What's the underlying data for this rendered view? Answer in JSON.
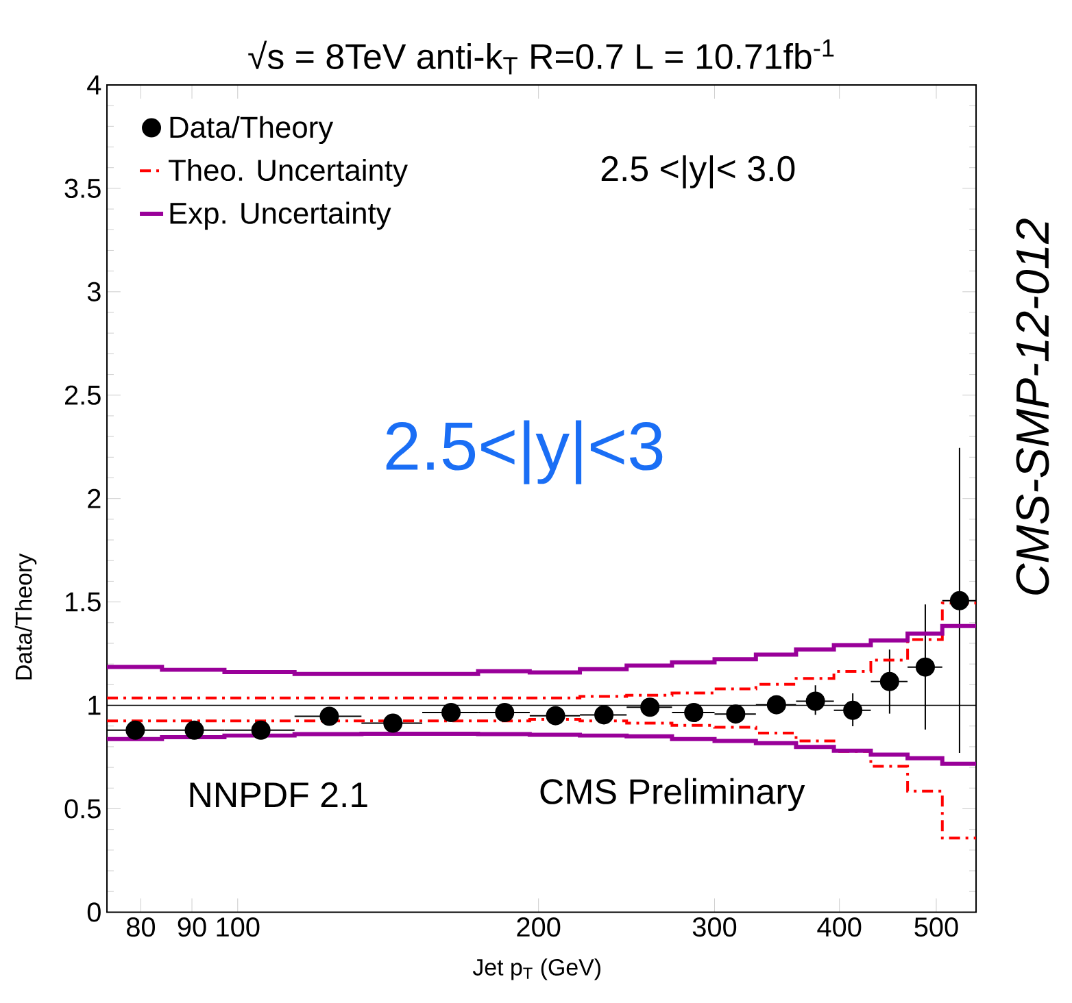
{
  "chart_data": {
    "type": "scatter",
    "title": "√s = 8TeV   anti-k$_{T}$ R=0.7  L = 10.71fb$^{-1}$",
    "xlabel": "Jet p$_{T}$ (GeV)",
    "ylabel": "Data/Theory",
    "annotations": [
      "2.5 <|y|< 3.0",
      "2.5<|y|<3",
      "NNPDF 2.1",
      "CMS Preliminary",
      "CMS-SMP-12-012"
    ],
    "log": "x",
    "xlim": [
      74,
      548
    ],
    "ylim": [
      0,
      4
    ],
    "xticks": [
      80,
      90,
      100,
      200,
      300,
      400,
      500
    ],
    "yticks": [
      0,
      0.5,
      1,
      1.5,
      2,
      2.5,
      3,
      3.5,
      4
    ],
    "legend": "top left",
    "ref_lines": [
      {
        "axis": "y",
        "value": 1,
        "color": "#000000"
      }
    ],
    "series": [
      {
        "name": "Data/Theory",
        "color": "#000000",
        "marker": "circle",
        "x": [
          79,
          90.5,
          105.5,
          123.5,
          143,
          163.5,
          185,
          208,
          232.5,
          258.5,
          286,
          315,
          346,
          378.5,
          412.5,
          449,
          487.5,
          527.5
        ],
        "values": [
          0.88,
          0.88,
          0.88,
          0.947,
          0.914,
          0.965,
          0.965,
          0.95,
          0.954,
          0.991,
          0.965,
          0.958,
          1.003,
          1.02,
          0.976,
          1.115,
          1.185,
          1.506
        ],
        "errors": [
          null,
          null,
          null,
          null,
          null,
          null,
          null,
          null,
          null,
          null,
          null,
          null,
          null,
          [
            0.954,
            1.097
          ],
          [
            0.899,
            1.058
          ],
          [
            0.96,
            1.27
          ],
          [
            0.883,
            1.488
          ],
          [
            0.77,
            2.245
          ]
        ],
        "xerrors": [
          [
            74,
            84
          ],
          [
            84,
            97
          ],
          [
            97,
            114
          ],
          [
            114,
            133
          ],
          [
            133,
            153
          ],
          [
            153,
            174
          ],
          [
            174,
            196
          ],
          [
            196,
            220
          ],
          [
            220,
            245
          ],
          [
            245,
            272
          ],
          [
            272,
            300
          ],
          [
            300,
            330
          ],
          [
            330,
            362
          ],
          [
            362,
            395
          ],
          [
            395,
            430
          ],
          [
            430,
            468
          ],
          [
            468,
            507
          ],
          [
            507,
            548
          ]
        ]
      },
      {
        "name": "Theo. Uncertainty",
        "type": "step",
        "color": "#ff0000",
        "line_style": "dashdot",
        "marker": "none",
        "x": [
          74,
          84,
          97,
          114,
          133,
          153,
          174,
          196,
          220,
          245,
          272,
          300,
          330,
          362,
          395,
          430,
          468,
          507,
          548
        ],
        "values": [
          1.036,
          1.036,
          1.036,
          1.036,
          1.036,
          1.036,
          1.036,
          1.036,
          1.043,
          1.049,
          1.06,
          1.08,
          1.102,
          1.13,
          1.164,
          1.219,
          1.318,
          1.495,
          1.495
        ]
      },
      {
        "type": "step",
        "color": "#ff0000",
        "line_style": "dashdot",
        "marker": "none",
        "x": [
          74,
          84,
          97,
          114,
          133,
          153,
          174,
          196,
          220,
          245,
          272,
          300,
          330,
          362,
          395,
          430,
          468,
          507,
          548
        ],
        "values": [
          0.925,
          0.925,
          0.925,
          0.925,
          0.925,
          0.925,
          0.925,
          0.932,
          0.925,
          0.914,
          0.903,
          0.894,
          0.866,
          0.828,
          0.777,
          0.705,
          0.585,
          0.358,
          0.358
        ]
      },
      {
        "name": "Exp. Uncertainty",
        "type": "step",
        "color": "#990099",
        "line_style": "solid",
        "marker": "none",
        "x": [
          74,
          84,
          97,
          114,
          133,
          153,
          174,
          196,
          220,
          245,
          272,
          300,
          330,
          362,
          395,
          430,
          468,
          507,
          548
        ],
        "values": [
          1.186,
          1.172,
          1.161,
          1.152,
          1.152,
          1.152,
          1.165,
          1.159,
          1.175,
          1.192,
          1.208,
          1.223,
          1.245,
          1.27,
          1.291,
          1.314,
          1.347,
          1.384,
          1.384
        ]
      },
      {
        "type": "step",
        "color": "#990099",
        "line_style": "solid",
        "marker": "none",
        "x": [
          74,
          84,
          97,
          114,
          133,
          153,
          174,
          196,
          220,
          245,
          272,
          300,
          330,
          362,
          395,
          430,
          468,
          507,
          548
        ],
        "values": [
          0.837,
          0.846,
          0.854,
          0.861,
          0.863,
          0.863,
          0.861,
          0.858,
          0.854,
          0.85,
          0.837,
          0.828,
          0.817,
          0.799,
          0.781,
          0.762,
          0.744,
          0.718,
          0.718
        ]
      }
    ]
  }
}
